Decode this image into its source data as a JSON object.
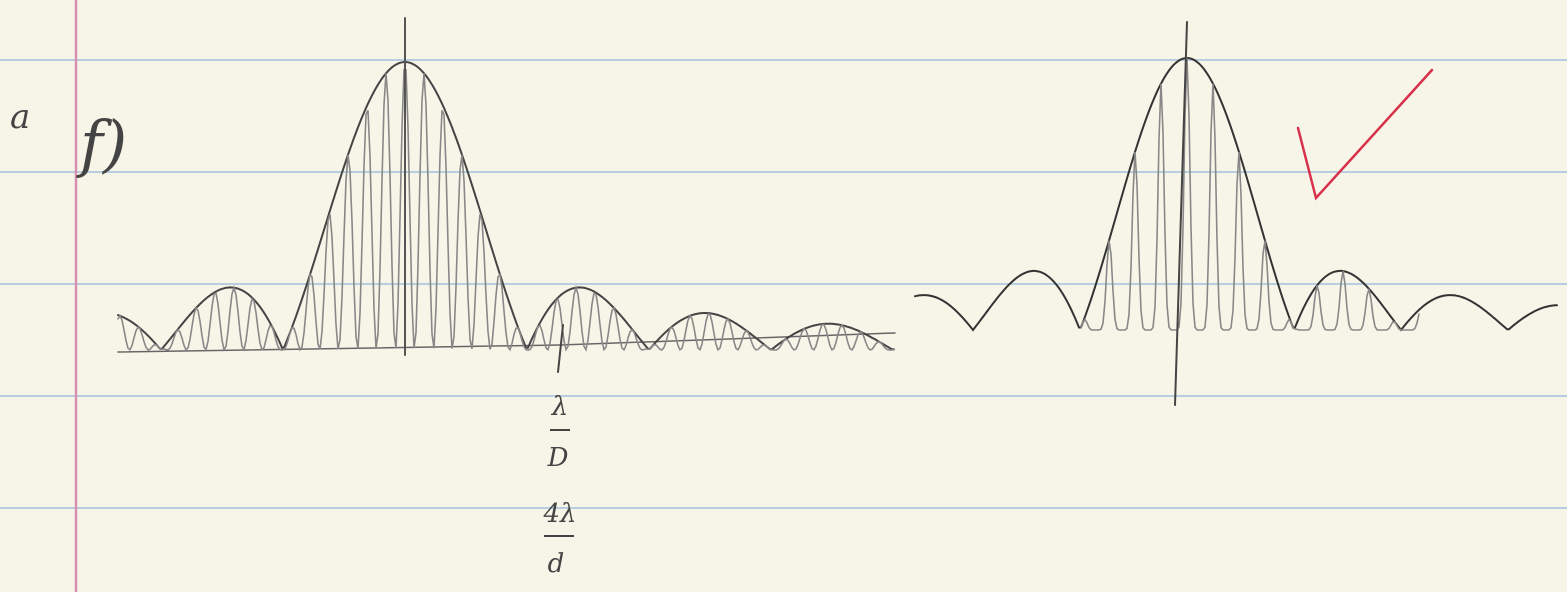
{
  "margin_mark": "a",
  "label": "f)",
  "annotations": [
    {
      "numerator": "λ",
      "denominator": "D"
    },
    {
      "numerator": "4λ",
      "denominator": "d"
    }
  ]
}
